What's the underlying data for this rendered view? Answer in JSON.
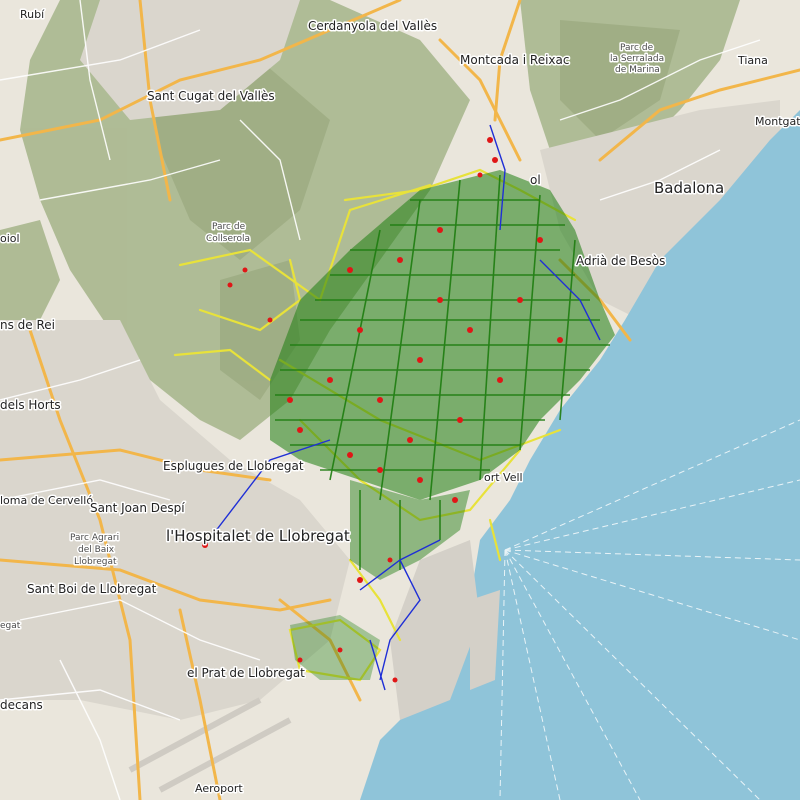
{
  "map": {
    "colors": {
      "land": "#eae6dc",
      "sea": "#8fc4d9",
      "forest": "#a5b48a",
      "urban": "#dcd8d0",
      "road_major": "#f2b64a",
      "road_minor": "#ffffff",
      "network_green": "#1e7d10",
      "network_yellow": "#e8e23a",
      "network_red": "#e01616",
      "network_blue": "#1f2fd6"
    },
    "labels": {
      "rubi": "Rubí",
      "cerdanyola": "Cerdanyola del Vallès",
      "montcada": "Montcada i Reixac",
      "parc_serralada_1": "Parc de",
      "parc_serralada_2": "la Serralada",
      "parc_serralada_3": "de Marina",
      "tiana": "Tiana",
      "montgat": "Montgat",
      "sant_cugat": "Sant Cugat del Vallès",
      "badalona": "Badalona",
      "collserola_1": "Parc de",
      "collserola_2": "Collserola",
      "adria": "Adrià de Besòs",
      "nou_barris": "ol",
      "pujol": "oiol",
      "feliu": "ns de Rei",
      "molins": "dels Horts",
      "esplugues": "Esplugues de Llobregat",
      "port_vell": "ort Vell",
      "coloma": "loma de Cervelló",
      "sant_joan": "Sant Joan Despí",
      "hospitalet": "l'Hospitalet de Llobregat",
      "parc_agrari_1": "Parc Agrari",
      "parc_agrari_2": "del Baix",
      "parc_agrari_3": "Llobregat",
      "sant_boi": "Sant Boi de Llobregat",
      "prat": "el Prat de Llobregat",
      "viladecans": "decans",
      "gat": "egat",
      "aeroport": "Aeroport"
    }
  }
}
